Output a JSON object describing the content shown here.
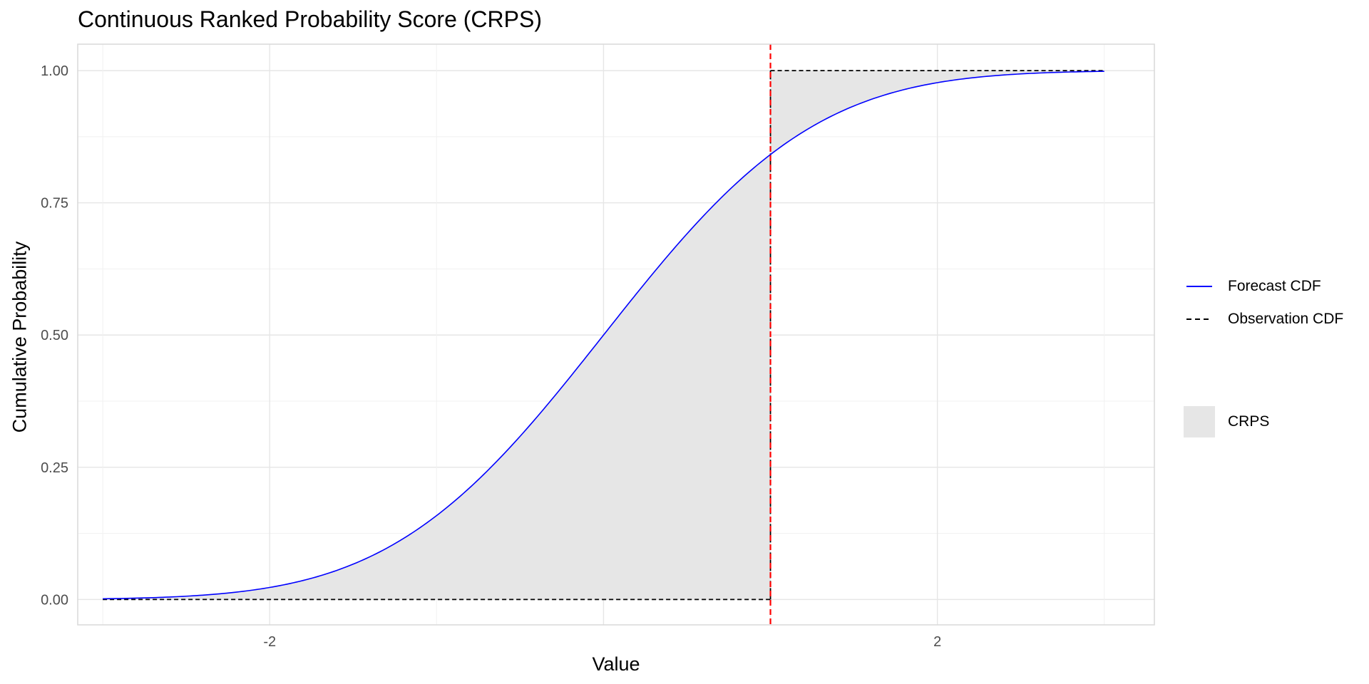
{
  "chart_data": {
    "type": "area",
    "title": "Continuous Ranked Probability Score (CRPS)",
    "xlabel": "Value",
    "ylabel": "Cumulative Probability",
    "xlim": [
      -3.15,
      3.3
    ],
    "ylim": [
      -0.048,
      1.05
    ],
    "x_ticks": [
      -2,
      2
    ],
    "x_tick_labels": [
      "-2",
      "2"
    ],
    "x_gridlines": [
      -3,
      -2,
      -1,
      0,
      1,
      2,
      3
    ],
    "y_ticks": [
      0,
      0.25,
      0.5,
      0.75,
      1.0
    ],
    "y_tick_labels": [
      "0.00",
      "0.25",
      "0.50",
      "0.75",
      "1.00"
    ],
    "y_minor_gridlines": [
      0.125,
      0.375,
      0.625,
      0.875
    ],
    "observation": 1.0,
    "x_range": [
      -3,
      3
    ],
    "series": [
      {
        "name": "Forecast CDF",
        "style": "solid",
        "color": "#0000ff",
        "x": [
          -3.0,
          -2.75,
          -2.5,
          -2.25,
          -2.0,
          -1.75,
          -1.5,
          -1.25,
          -1.0,
          -0.75,
          -0.5,
          -0.25,
          0.0,
          0.25,
          0.5,
          0.75,
          1.0,
          1.25,
          1.5,
          1.75,
          2.0,
          2.25,
          2.5,
          2.75,
          3.0
        ],
        "y": [
          0.001,
          0.003,
          0.006,
          0.012,
          0.023,
          0.04,
          0.067,
          0.106,
          0.159,
          0.227,
          0.309,
          0.401,
          0.5,
          0.599,
          0.691,
          0.773,
          0.841,
          0.894,
          0.933,
          0.96,
          0.977,
          0.988,
          0.994,
          0.997,
          0.999
        ]
      },
      {
        "name": "Observation CDF",
        "style": "dashed",
        "color": "#000000",
        "x": [
          -3.0,
          1.0,
          1.0,
          3.0
        ],
        "y": [
          0.0,
          0.0,
          1.0,
          1.0
        ]
      }
    ],
    "fill": {
      "name": "CRPS",
      "color": "#e6e6e6"
    },
    "vline": {
      "x": 1.0,
      "color": "#ff0000",
      "style": "dashed"
    },
    "grid": true,
    "legend_position": "right"
  }
}
